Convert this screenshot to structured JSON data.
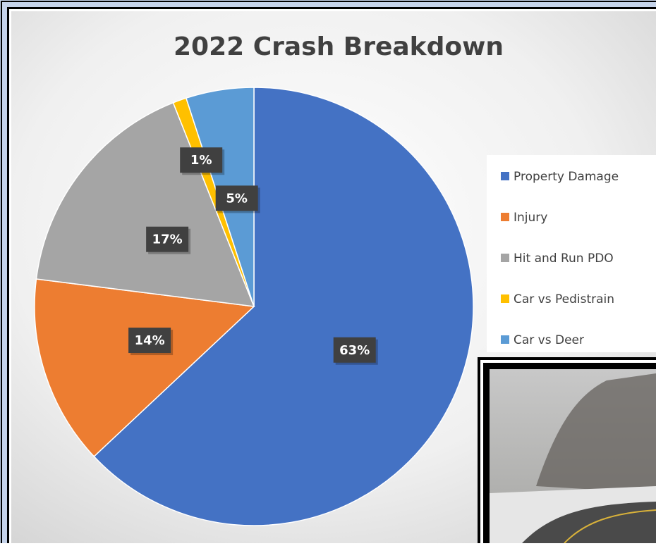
{
  "chart_data": {
    "type": "pie",
    "title": "2022 Crash Breakdown",
    "categories": [
      "Property Damage",
      "Injury",
      "Hit and Run PDO",
      "Car vs Pedistrain",
      "Car vs Deer"
    ],
    "values": [
      63,
      14,
      17,
      1,
      5
    ],
    "value_labels": [
      "63%",
      "14%",
      "17%",
      "1%",
      "5%"
    ],
    "colors": [
      "#4472c4",
      "#ed7d31",
      "#a5a5a5",
      "#ffc000",
      "#5b9bd5"
    ],
    "legend": "right"
  }
}
